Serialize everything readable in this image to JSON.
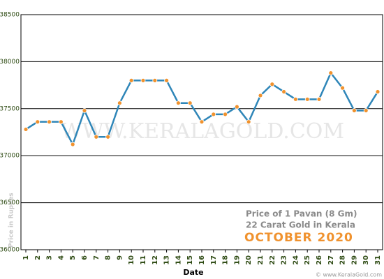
{
  "chart_data": {
    "type": "line",
    "categories": [
      "1",
      "2",
      "3",
      "4",
      "5",
      "6",
      "7",
      "8",
      "9",
      "10",
      "11",
      "12",
      "13",
      "14",
      "15",
      "16",
      "17",
      "18",
      "19",
      "20",
      "21",
      "22",
      "23",
      "24",
      "25",
      "26",
      "27",
      "28",
      "29",
      "30",
      "31"
    ],
    "series": [
      {
        "name": "Price of 1 Pavan",
        "color": "#2f86b8",
        "marker_color": "#f0922e",
        "values": [
          37280,
          37360,
          37360,
          37360,
          37120,
          37480,
          37200,
          37200,
          37560,
          37800,
          37800,
          37800,
          37800,
          37560,
          37560,
          37360,
          37440,
          37440,
          37520,
          37360,
          37640,
          37760,
          37680,
          37600,
          37600,
          37600,
          37880,
          37720,
          37480,
          37480,
          37680
        ]
      }
    ],
    "ylim": [
      36000,
      38500
    ],
    "yticks": [
      36000,
      36500,
      37000,
      37500,
      38000,
      38500
    ],
    "grid": true,
    "x_label": "Date",
    "y_label": "Price in Rupees",
    "annotations": [
      "Price of 1 Pavan (8 Gm)",
      "22 Carat Gold in Kerala",
      "OCTOBER 2020"
    ],
    "watermark": "WWW.KERALAGOLD.COM",
    "footer": "© www.KeralaGold.com"
  }
}
